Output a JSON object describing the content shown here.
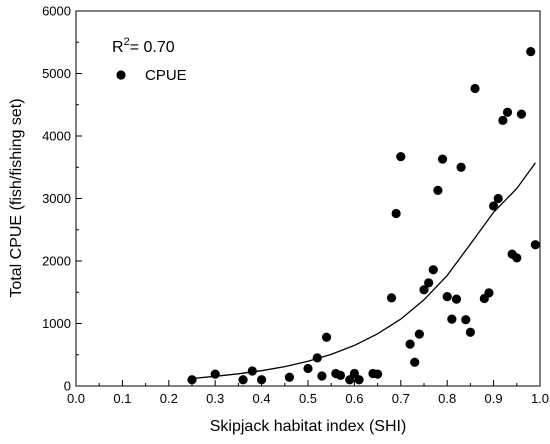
{
  "chart_data": {
    "type": "scatter",
    "xlabel": "Skipjack habitat index (SHI)",
    "ylabel": "Total CPUE (fish/fishing set)",
    "xlim": [
      0.0,
      1.0
    ],
    "ylim": [
      0,
      6000
    ],
    "xticks": [
      "0.0",
      "0.1",
      "0.2",
      "0.3",
      "0.4",
      "0.5",
      "0.6",
      "0.7",
      "0.8",
      "0.9",
      "1.0"
    ],
    "yticks": [
      "0",
      "1000",
      "2000",
      "3000",
      "4000",
      "5000",
      "6000"
    ],
    "grid": false,
    "legend_position": "top-left",
    "annotation": {
      "r_label": "R",
      "r_sup": "2",
      "r_value": "= 0.70"
    },
    "series": [
      {
        "name": "CPUE",
        "marker": "circle",
        "color": "#000000",
        "points": [
          {
            "x": 0.25,
            "y": 100
          },
          {
            "x": 0.3,
            "y": 190
          },
          {
            "x": 0.36,
            "y": 100
          },
          {
            "x": 0.38,
            "y": 240
          },
          {
            "x": 0.4,
            "y": 100
          },
          {
            "x": 0.46,
            "y": 140
          },
          {
            "x": 0.5,
            "y": 280
          },
          {
            "x": 0.52,
            "y": 450
          },
          {
            "x": 0.53,
            "y": 160
          },
          {
            "x": 0.54,
            "y": 780
          },
          {
            "x": 0.56,
            "y": 200
          },
          {
            "x": 0.57,
            "y": 170
          },
          {
            "x": 0.59,
            "y": 100
          },
          {
            "x": 0.6,
            "y": 200
          },
          {
            "x": 0.61,
            "y": 100
          },
          {
            "x": 0.64,
            "y": 200
          },
          {
            "x": 0.65,
            "y": 190
          },
          {
            "x": 0.68,
            "y": 1410
          },
          {
            "x": 0.69,
            "y": 2760
          },
          {
            "x": 0.7,
            "y": 3670
          },
          {
            "x": 0.72,
            "y": 670
          },
          {
            "x": 0.73,
            "y": 380
          },
          {
            "x": 0.74,
            "y": 830
          },
          {
            "x": 0.75,
            "y": 1540
          },
          {
            "x": 0.76,
            "y": 1650
          },
          {
            "x": 0.77,
            "y": 1860
          },
          {
            "x": 0.78,
            "y": 3130
          },
          {
            "x": 0.79,
            "y": 3630
          },
          {
            "x": 0.8,
            "y": 1430
          },
          {
            "x": 0.81,
            "y": 1070
          },
          {
            "x": 0.82,
            "y": 1390
          },
          {
            "x": 0.83,
            "y": 3500
          },
          {
            "x": 0.84,
            "y": 1060
          },
          {
            "x": 0.85,
            "y": 860
          },
          {
            "x": 0.86,
            "y": 4760
          },
          {
            "x": 0.88,
            "y": 1400
          },
          {
            "x": 0.89,
            "y": 1490
          },
          {
            "x": 0.9,
            "y": 2880
          },
          {
            "x": 0.91,
            "y": 3000
          },
          {
            "x": 0.92,
            "y": 4250
          },
          {
            "x": 0.93,
            "y": 4380
          },
          {
            "x": 0.94,
            "y": 2110
          },
          {
            "x": 0.95,
            "y": 2050
          },
          {
            "x": 0.96,
            "y": 4350
          },
          {
            "x": 0.98,
            "y": 5350
          },
          {
            "x": 0.99,
            "y": 2260
          }
        ]
      }
    ],
    "fit_curve": {
      "type": "exponential",
      "points": [
        {
          "x": 0.25,
          "y": 120
        },
        {
          "x": 0.3,
          "y": 155
        },
        {
          "x": 0.35,
          "y": 195
        },
        {
          "x": 0.4,
          "y": 245
        },
        {
          "x": 0.45,
          "y": 310
        },
        {
          "x": 0.5,
          "y": 395
        },
        {
          "x": 0.55,
          "y": 505
        },
        {
          "x": 0.6,
          "y": 650
        },
        {
          "x": 0.65,
          "y": 835
        },
        {
          "x": 0.7,
          "y": 1070
        },
        {
          "x": 0.75,
          "y": 1380
        },
        {
          "x": 0.8,
          "y": 1770
        },
        {
          "x": 0.85,
          "y": 2270
        },
        {
          "x": 0.9,
          "y": 2780
        },
        {
          "x": 0.95,
          "y": 3160
        },
        {
          "x": 0.99,
          "y": 3570
        }
      ]
    }
  }
}
